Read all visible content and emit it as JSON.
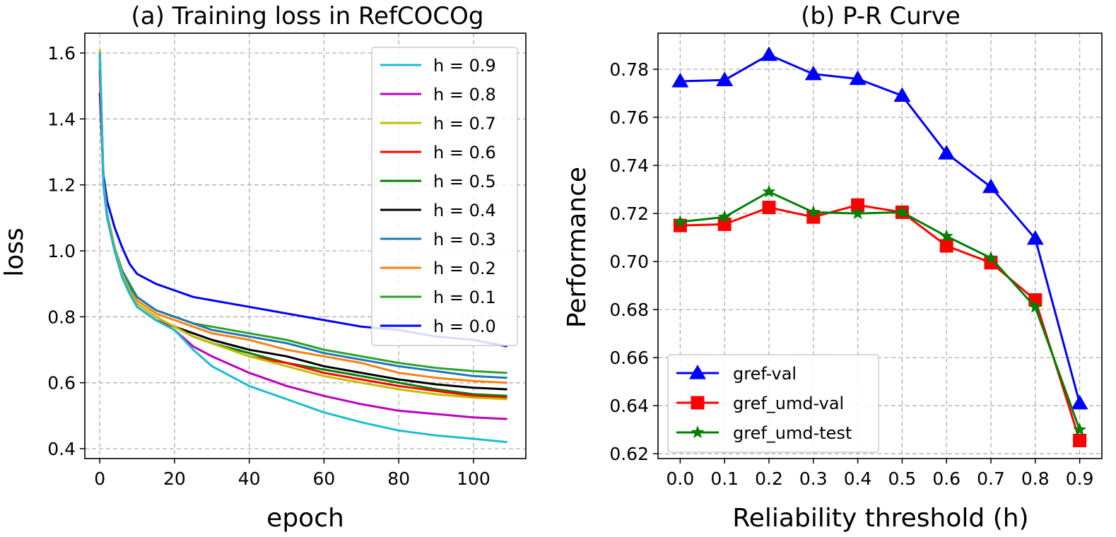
{
  "chart_data": [
    {
      "type": "line",
      "title": "(a) Training loss in RefCOCOg",
      "xlabel": "epoch",
      "ylabel": "loss",
      "xlim": [
        -4,
        114
      ],
      "ylim": [
        0.37,
        1.66
      ],
      "xticks": [
        0,
        20,
        40,
        60,
        80,
        100
      ],
      "xtick_labels": [
        "0",
        "20",
        "40",
        "60",
        "80",
        "100"
      ],
      "yticks": [
        0.4,
        0.6,
        0.8,
        1.0,
        1.2,
        1.4,
        1.6
      ],
      "ytick_labels": [
        "0.4",
        "0.6",
        "0.8",
        "1.0",
        "1.2",
        "1.4",
        "1.6"
      ],
      "grid": true,
      "legend_position": "top-right",
      "x": [
        0,
        1,
        2,
        4,
        6,
        8,
        10,
        15,
        20,
        25,
        30,
        40,
        50,
        60,
        70,
        80,
        90,
        100,
        109
      ],
      "series": [
        {
          "name": "h = 0.9",
          "color": "#17becf",
          "values": [
            1.6,
            1.2,
            1.1,
            1.0,
            0.92,
            0.87,
            0.83,
            0.79,
            0.76,
            0.7,
            0.65,
            0.59,
            0.55,
            0.51,
            0.48,
            0.455,
            0.44,
            0.43,
            0.42
          ]
        },
        {
          "name": "h = 0.8",
          "color": "#bf00bf",
          "values": [
            1.6,
            1.2,
            1.1,
            1.0,
            0.92,
            0.87,
            0.83,
            0.79,
            0.76,
            0.71,
            0.68,
            0.63,
            0.59,
            0.56,
            0.535,
            0.515,
            0.505,
            0.495,
            0.49
          ]
        },
        {
          "name": "h = 0.7",
          "color": "#bfbf00",
          "values": [
            1.61,
            1.21,
            1.11,
            1.01,
            0.93,
            0.88,
            0.84,
            0.8,
            0.77,
            0.74,
            0.72,
            0.68,
            0.65,
            0.62,
            0.6,
            0.58,
            0.565,
            0.555,
            0.55
          ]
        },
        {
          "name": "h = 0.6",
          "color": "#ff0000",
          "values": [
            1.54,
            1.2,
            1.1,
            1.0,
            0.92,
            0.87,
            0.83,
            0.79,
            0.77,
            0.74,
            0.72,
            0.68,
            0.66,
            0.63,
            0.61,
            0.59,
            0.575,
            0.56,
            0.555
          ]
        },
        {
          "name": "h = 0.5",
          "color": "#008000",
          "values": [
            1.57,
            1.2,
            1.1,
            1.0,
            0.92,
            0.87,
            0.83,
            0.79,
            0.77,
            0.74,
            0.72,
            0.69,
            0.66,
            0.64,
            0.62,
            0.6,
            0.58,
            0.565,
            0.56
          ]
        },
        {
          "name": "h = 0.4",
          "color": "#000000",
          "values": [
            1.55,
            1.2,
            1.1,
            1.0,
            0.92,
            0.87,
            0.83,
            0.79,
            0.77,
            0.75,
            0.73,
            0.7,
            0.68,
            0.65,
            0.63,
            0.61,
            0.595,
            0.585,
            0.58
          ]
        },
        {
          "name": "h = 0.3",
          "color": "#1f77b4",
          "values": [
            1.6,
            1.21,
            1.11,
            1.01,
            0.94,
            0.89,
            0.86,
            0.82,
            0.8,
            0.78,
            0.76,
            0.74,
            0.72,
            0.69,
            0.67,
            0.65,
            0.635,
            0.62,
            0.615
          ]
        },
        {
          "name": "h = 0.2",
          "color": "#ff7f0e",
          "values": [
            1.61,
            1.21,
            1.11,
            1.01,
            0.93,
            0.89,
            0.85,
            0.81,
            0.79,
            0.77,
            0.75,
            0.73,
            0.7,
            0.68,
            0.66,
            0.63,
            0.615,
            0.605,
            0.6
          ]
        },
        {
          "name": "h = 0.1",
          "color": "#2ca02c",
          "values": [
            1.58,
            1.21,
            1.11,
            1.01,
            0.94,
            0.9,
            0.86,
            0.82,
            0.8,
            0.78,
            0.77,
            0.75,
            0.73,
            0.7,
            0.68,
            0.66,
            0.645,
            0.635,
            0.63
          ]
        },
        {
          "name": "h = 0.0",
          "color": "#0000ff",
          "values": [
            1.48,
            1.23,
            1.15,
            1.07,
            1.01,
            0.96,
            0.93,
            0.9,
            0.88,
            0.86,
            0.85,
            0.83,
            0.81,
            0.79,
            0.77,
            0.76,
            0.74,
            0.73,
            0.71
          ]
        }
      ]
    },
    {
      "type": "line",
      "title": "(b) P-R Curve",
      "xlabel": "Reliability threshold (h)",
      "ylabel": "Performance",
      "categories": [
        "0.0",
        "0.1",
        "0.2",
        "0.3",
        "0.4",
        "0.5",
        "0.6",
        "0.7",
        "0.8",
        "0.9"
      ],
      "ylim": [
        0.618,
        0.795
      ],
      "yticks": [
        0.62,
        0.64,
        0.66,
        0.68,
        0.7,
        0.72,
        0.74,
        0.76,
        0.78
      ],
      "ytick_labels": [
        "0.62",
        "0.64",
        "0.66",
        "0.68",
        "0.70",
        "0.72",
        "0.74",
        "0.76",
        "0.78"
      ],
      "grid": true,
      "legend_position": "lower-left",
      "series": [
        {
          "name": "gref-val",
          "color": "#0000ff",
          "marker": "triangle",
          "values": [
            0.775,
            0.7755,
            0.786,
            0.778,
            0.776,
            0.769,
            0.745,
            0.731,
            0.7095,
            0.641
          ]
        },
        {
          "name": "gref_umd-val",
          "color": "#ff0000",
          "marker": "square",
          "values": [
            0.715,
            0.7155,
            0.7225,
            0.7185,
            0.7235,
            0.7205,
            0.7065,
            0.6995,
            0.684,
            0.6255
          ]
        },
        {
          "name": "gref_umd-test",
          "color": "#008000",
          "marker": "star",
          "values": [
            0.7165,
            0.7185,
            0.729,
            0.7205,
            0.72,
            0.7205,
            0.7105,
            0.7015,
            0.681,
            0.63
          ]
        }
      ]
    }
  ]
}
